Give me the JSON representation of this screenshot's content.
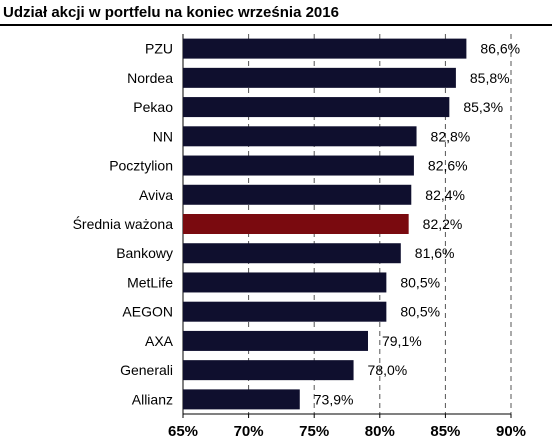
{
  "title": "Udział akcji w portfelu na koniec września 2016",
  "colors": {
    "bar": "#0f0f2e",
    "highlight": "#7a0a0f",
    "grid": "#555555"
  },
  "chart_data": {
    "type": "bar",
    "orientation": "horizontal",
    "title": "Udział akcji w portfelu na koniec września 2016",
    "xlabel": "",
    "ylabel": "",
    "xlim": [
      65,
      90
    ],
    "grid": "vertical dashed",
    "categories": [
      "PZU",
      "Nordea",
      "Pekao",
      "NN",
      "Pocztylion",
      "Aviva",
      "Średnia ważona",
      "Bankowy",
      "MetLife",
      "AEGON",
      "AXA",
      "Generali",
      "Allianz"
    ],
    "values": [
      86.6,
      85.8,
      85.3,
      82.8,
      82.6,
      82.4,
      82.2,
      81.6,
      80.5,
      80.5,
      79.1,
      78.0,
      73.9
    ],
    "value_labels": [
      "86,6%",
      "85,8%",
      "85,3%",
      "82,8%",
      "82,6%",
      "82,4%",
      "82,2%",
      "81,6%",
      "80,5%",
      "80,5%",
      "79,1%",
      "78,0%",
      "73,9%"
    ],
    "highlight_category": "Średnia ważona",
    "ticks": [
      65,
      70,
      75,
      80,
      85,
      90
    ],
    "tick_labels": [
      "65%",
      "70%",
      "75%",
      "80%",
      "85%",
      "90%"
    ]
  }
}
